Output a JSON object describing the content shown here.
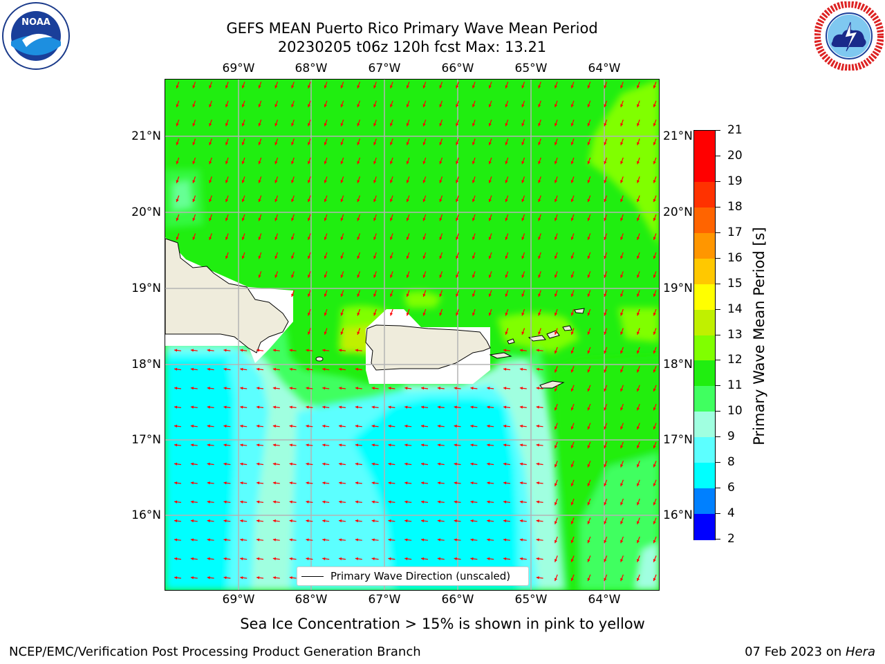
{
  "title_line1": "GEFS MEAN Puerto Rico Primary Wave Mean Period",
  "title_line2": "20230205 t06z 120h fcst   Max: 13.21",
  "lon_ticks": [
    "69°W",
    "68°W",
    "67°W",
    "66°W",
    "65°W",
    "64°W"
  ],
  "lat_ticks": [
    "21°N",
    "20°N",
    "19°N",
    "18°N",
    "17°N",
    "16°N"
  ],
  "legend_label": "Primary Wave Direction (unscaled)",
  "colorbar": {
    "title": "Primary Wave Mean Period [s]",
    "ticks": [
      "2",
      "4",
      "6",
      "8",
      "9",
      "10",
      "11",
      "12",
      "13",
      "14",
      "15",
      "16",
      "17",
      "18",
      "19",
      "20",
      "21"
    ],
    "colors": [
      "#0000ff",
      "#0080ff",
      "#00ffff",
      "#5cffff",
      "#a0ffe0",
      "#40ff60",
      "#20ee10",
      "#80ff00",
      "#c0f000",
      "#ffff00",
      "#ffc800",
      "#ff9600",
      "#ff6400",
      "#ff3200",
      "#ff0000",
      "#ff0000"
    ]
  },
  "colors": {
    "land": "#efecdc",
    "sea_ice_mask": "#ffffff",
    "arrow": "#ff0000",
    "gridline": "#b4b4b4"
  },
  "subcaption": "Sea Ice Concentration > 15% is shown in pink to yellow",
  "footer_left": "NCEP/EMC/Verification Post Processing Product Generation Branch",
  "footer_date": "07 Feb 2023 on ",
  "footer_host": "Hera",
  "logos": {
    "left": "noaa-logo-icon",
    "right": "national-weather-service-logo-icon"
  }
}
